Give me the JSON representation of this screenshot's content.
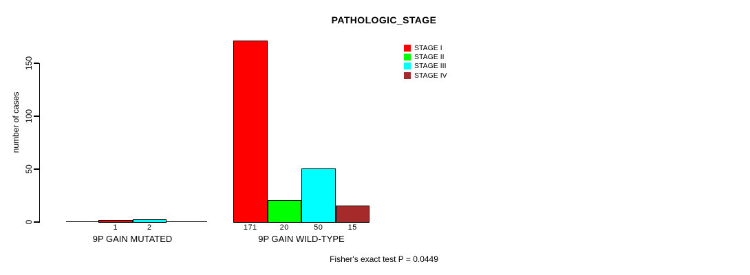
{
  "chart_data": {
    "type": "bar",
    "title": "PATHOLOGIC_STAGE",
    "xlabel": "",
    "ylabel": "number of cases",
    "yticks": [
      0,
      50,
      100,
      150
    ],
    "ylim": [
      0,
      175
    ],
    "grid": false,
    "legend_position": "top-right",
    "legend": [
      {
        "label": "STAGE I",
        "color": "#ff0000"
      },
      {
        "label": "STAGE II",
        "color": "#00ff00"
      },
      {
        "label": "STAGE III",
        "color": "#00ffff"
      },
      {
        "label": "STAGE IV",
        "color": "#a52a2a"
      }
    ],
    "categories": [
      "9P GAIN MUTATED",
      "9P GAIN WILD-TYPE"
    ],
    "groups": [
      {
        "label": "9P GAIN MUTATED",
        "bars": [
          {
            "stage": "STAGE I",
            "value": 1,
            "count_label": "1",
            "color": "#ff0000"
          },
          {
            "stage": "STAGE III",
            "value": 2,
            "count_label": "2",
            "color": "#00ffff"
          }
        ]
      },
      {
        "label": "9P GAIN WILD-TYPE",
        "bars": [
          {
            "stage": "STAGE I",
            "value": 171,
            "count_label": "171",
            "color": "#ff0000"
          },
          {
            "stage": "STAGE II",
            "value": 20,
            "count_label": "20",
            "color": "#00ff00"
          },
          {
            "stage": "STAGE III",
            "value": 50,
            "count_label": "50",
            "color": "#00ffff"
          },
          {
            "stage": "STAGE IV",
            "value": 15,
            "count_label": "15",
            "color": "#a52a2a"
          }
        ]
      }
    ],
    "footer": "Fisher's exact test P = 0.0449",
    "axis_color": "#000000"
  }
}
